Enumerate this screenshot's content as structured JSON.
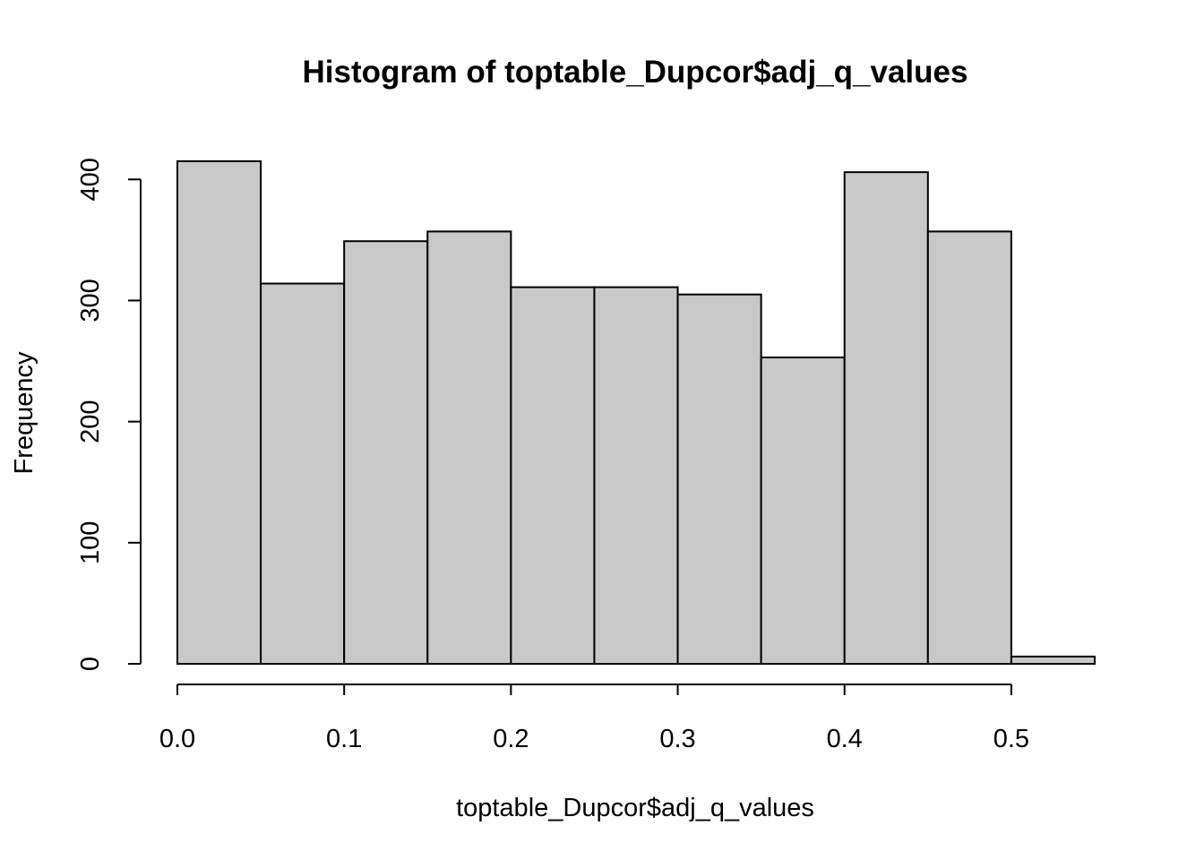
{
  "chart_data": {
    "type": "bar",
    "subtype": "histogram",
    "title": "Histogram of toptable_Dupcor$adj_q_values",
    "xlabel": "toptable_Dupcor$adj_q_values",
    "ylabel": "Frequency",
    "bins": [
      {
        "start": 0.0,
        "end": 0.05,
        "count": 415
      },
      {
        "start": 0.05,
        "end": 0.1,
        "count": 314
      },
      {
        "start": 0.1,
        "end": 0.15,
        "count": 349
      },
      {
        "start": 0.15,
        "end": 0.2,
        "count": 357
      },
      {
        "start": 0.2,
        "end": 0.25,
        "count": 311
      },
      {
        "start": 0.25,
        "end": 0.3,
        "count": 311
      },
      {
        "start": 0.3,
        "end": 0.35,
        "count": 305
      },
      {
        "start": 0.35,
        "end": 0.4,
        "count": 253
      },
      {
        "start": 0.4,
        "end": 0.45,
        "count": 406
      },
      {
        "start": 0.45,
        "end": 0.5,
        "count": 357
      },
      {
        "start": 0.5,
        "end": 0.55,
        "count": 6
      }
    ],
    "xlim": [
      0,
      0.55
    ],
    "ylim": [
      0,
      415
    ],
    "x_ticks": [
      {
        "value": 0.0,
        "label": "0.0"
      },
      {
        "value": 0.1,
        "label": "0.1"
      },
      {
        "value": 0.2,
        "label": "0.2"
      },
      {
        "value": 0.3,
        "label": "0.3"
      },
      {
        "value": 0.4,
        "label": "0.4"
      },
      {
        "value": 0.5,
        "label": "0.5"
      }
    ],
    "y_ticks": [
      {
        "value": 0,
        "label": "0"
      },
      {
        "value": 100,
        "label": "100"
      },
      {
        "value": 200,
        "label": "200"
      },
      {
        "value": 300,
        "label": "300"
      },
      {
        "value": 400,
        "label": "400"
      }
    ],
    "grid": false,
    "legend": "none",
    "colors": {
      "bar_fill": "#c8c8c8",
      "bar_stroke": "#000000",
      "axis": "#000000",
      "background": "#ffffff"
    }
  }
}
